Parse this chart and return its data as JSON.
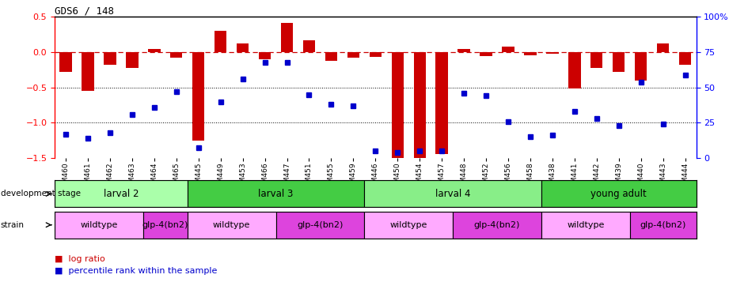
{
  "title": "GDS6 / 148",
  "samples": [
    "GSM460",
    "GSM461",
    "GSM462",
    "GSM463",
    "GSM464",
    "GSM465",
    "GSM445",
    "GSM449",
    "GSM453",
    "GSM466",
    "GSM447",
    "GSM451",
    "GSM455",
    "GSM459",
    "GSM446",
    "GSM450",
    "GSM454",
    "GSM457",
    "GSM448",
    "GSM452",
    "GSM456",
    "GSM458",
    "GSM438",
    "GSM441",
    "GSM442",
    "GSM439",
    "GSM440",
    "GSM443",
    "GSM444"
  ],
  "log_ratio": [
    -0.28,
    -0.55,
    -0.18,
    -0.22,
    0.04,
    -0.08,
    -1.25,
    0.3,
    0.12,
    -0.1,
    0.42,
    0.17,
    -0.12,
    -0.08,
    -0.07,
    -1.55,
    -1.5,
    -1.45,
    0.04,
    -0.06,
    0.08,
    -0.04,
    -0.02,
    -0.52,
    -0.22,
    -0.28,
    -0.4,
    0.12,
    -0.18
  ],
  "percentile": [
    17,
    14,
    18,
    31,
    36,
    47,
    7,
    40,
    56,
    68,
    68,
    45,
    38,
    37,
    5,
    4,
    5,
    5,
    46,
    44,
    26,
    15,
    16,
    33,
    28,
    23,
    54,
    24,
    59
  ],
  "ylim_left": [
    -1.5,
    0.5
  ],
  "ylim_right": [
    0,
    100
  ],
  "bar_color": "#cc0000",
  "dot_color": "#0000cc",
  "zero_line_color": "#cc0000",
  "grid_color": "#000000",
  "development_stages": [
    {
      "label": "larval 2",
      "start": 0,
      "end": 6,
      "color": "#aaffaa"
    },
    {
      "label": "larval 3",
      "start": 6,
      "end": 14,
      "color": "#44cc44"
    },
    {
      "label": "larval 4",
      "start": 14,
      "end": 22,
      "color": "#88ee88"
    },
    {
      "label": "young adult",
      "start": 22,
      "end": 29,
      "color": "#44cc44"
    }
  ],
  "strains": [
    {
      "label": "wildtype",
      "start": 0,
      "end": 4,
      "color": "#ffaaff"
    },
    {
      "label": "glp-4(bn2)",
      "start": 4,
      "end": 6,
      "color": "#dd44dd"
    },
    {
      "label": "wildtype",
      "start": 6,
      "end": 10,
      "color": "#ffaaff"
    },
    {
      "label": "glp-4(bn2)",
      "start": 10,
      "end": 14,
      "color": "#dd44dd"
    },
    {
      "label": "wildtype",
      "start": 14,
      "end": 18,
      "color": "#ffaaff"
    },
    {
      "label": "glp-4(bn2)",
      "start": 18,
      "end": 22,
      "color": "#dd44dd"
    },
    {
      "label": "wildtype",
      "start": 22,
      "end": 26,
      "color": "#ffaaff"
    },
    {
      "label": "glp-4(bn2)",
      "start": 26,
      "end": 29,
      "color": "#dd44dd"
    }
  ]
}
